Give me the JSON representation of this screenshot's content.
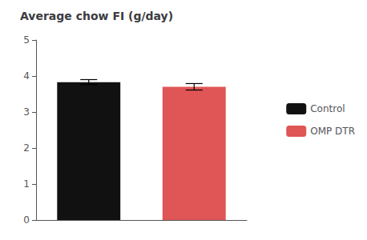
{
  "chart_data": {
    "type": "bar",
    "title": "Average chow FI (g/day)",
    "categories": [
      "Control",
      "OMP DTR"
    ],
    "values": [
      3.83,
      3.7
    ],
    "errors": [
      0.07,
      0.09
    ],
    "colors": [
      "#111111",
      "#E05555"
    ],
    "ylim": [
      0,
      5
    ],
    "yticks": [
      0,
      1,
      2,
      3,
      4,
      5
    ],
    "grid": false,
    "legend": "right",
    "tick_labels": "y"
  }
}
